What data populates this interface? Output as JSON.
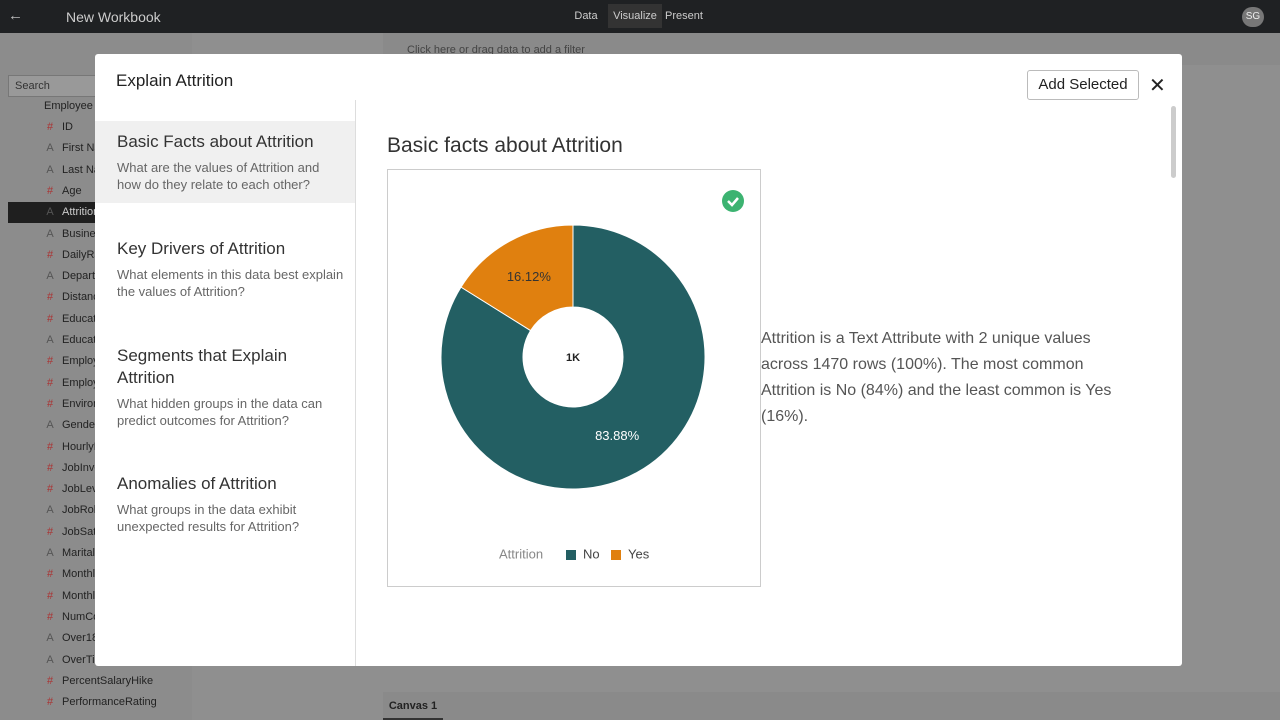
{
  "app_bar": {
    "title": "New Workbook",
    "tabs": [
      "Data",
      "Visualize",
      "Present"
    ],
    "user": "SG"
  },
  "filter_bar": {
    "placeholder": "Click here or drag data to add a filter"
  },
  "sidebar": {
    "search": "Search",
    "items": [
      {
        "icon": "#",
        "label": "ID"
      },
      {
        "icon": "A",
        "label": "First Na"
      },
      {
        "icon": "A",
        "label": "Last Na"
      },
      {
        "icon": "#",
        "label": "Age"
      },
      {
        "icon": "A",
        "label": "Attrition"
      },
      {
        "icon": "A",
        "label": "Busines"
      },
      {
        "icon": "#",
        "label": "DailyRa"
      },
      {
        "icon": "A",
        "label": "Departr"
      },
      {
        "icon": "#",
        "label": "Distanc"
      },
      {
        "icon": "#",
        "label": "Educatio"
      },
      {
        "icon": "A",
        "label": "Educatio"
      },
      {
        "icon": "#",
        "label": "Employ"
      },
      {
        "icon": "#",
        "label": "Employ"
      },
      {
        "icon": "#",
        "label": "Environ"
      },
      {
        "icon": "A",
        "label": "Gender"
      },
      {
        "icon": "#",
        "label": "HourlyF"
      },
      {
        "icon": "#",
        "label": "JobInvo"
      },
      {
        "icon": "#",
        "label": "JobLeve"
      },
      {
        "icon": "A",
        "label": "JobRole"
      },
      {
        "icon": "#",
        "label": "JobSati"
      },
      {
        "icon": "A",
        "label": "MaritalS"
      },
      {
        "icon": "#",
        "label": "Monthly"
      },
      {
        "icon": "#",
        "label": "Monthly"
      },
      {
        "icon": "#",
        "label": "NumCo"
      },
      {
        "icon": "A",
        "label": "Over18"
      },
      {
        "icon": "A",
        "label": "OverTim"
      },
      {
        "icon": "#",
        "label": "PercentSalaryHike"
      },
      {
        "icon": "#",
        "label": "PerformanceRating"
      }
    ],
    "dataset": "Employee A"
  },
  "canvas_tab": "Canvas 1",
  "dialog": {
    "title": "Explain Attrition",
    "button": "Add Selected",
    "nav": [
      {
        "title": "Basic Facts about Attrition",
        "description": "What are the values of Attrition and how do they relate to each other?"
      },
      {
        "title": "Key Drivers of Attrition",
        "description": "What elements in this data best explain the values of Attrition?"
      },
      {
        "title": "Segments that Explain Attrition",
        "description": "What hidden groups in the data can predict outcomes for Attrition?"
      },
      {
        "title": "Anomalies of Attrition",
        "description": "What groups in the data exhibit unexpected results for Attrition?"
      }
    ],
    "section_title": "Basic facts about Attrition",
    "chart_data": {
      "type": "pie",
      "center_label": "1K",
      "legend_title": "Attrition",
      "categories": [
        "No",
        "Yes"
      ],
      "values": [
        83.88,
        16.12
      ],
      "value_labels": [
        "83.88%",
        "16.12%"
      ],
      "colors": [
        "#235f63",
        "#e0800f"
      ]
    },
    "summary": "Attrition is a Text Attribute with 2 unique values across 1470 rows (100%). The most common Attrition is No (84%) and the least common is Yes (16%)."
  }
}
